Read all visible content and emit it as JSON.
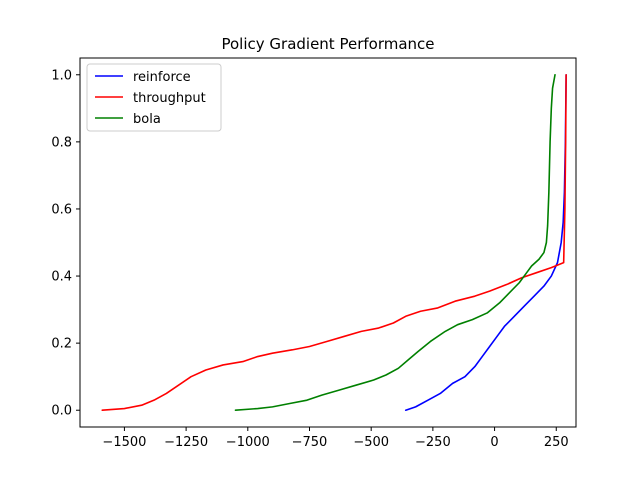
{
  "chart_data": {
    "type": "line",
    "title": "Policy Gradient Performance",
    "xlabel": "",
    "ylabel": "",
    "xlim": [
      -1680,
      330
    ],
    "ylim": [
      -0.05,
      1.05
    ],
    "x_ticks": [
      -1500,
      -1250,
      -1000,
      -750,
      -500,
      -250,
      0,
      250
    ],
    "x_tick_labels": [
      "−1500",
      "−1250",
      "−1000",
      "−750",
      "−500",
      "−250",
      "0",
      "250"
    ],
    "y_ticks": [
      0.0,
      0.2,
      0.4,
      0.6,
      0.8,
      1.0
    ],
    "y_tick_labels": [
      "0.0",
      "0.2",
      "0.4",
      "0.6",
      "0.8",
      "1.0"
    ],
    "grid": false,
    "legend_position": "top-left",
    "series": [
      {
        "name": "reinforce",
        "color": "#0000ff",
        "points": [
          [
            -360,
            0.0
          ],
          [
            -320,
            0.01
          ],
          [
            -270,
            0.03
          ],
          [
            -220,
            0.05
          ],
          [
            -170,
            0.08
          ],
          [
            -120,
            0.1
          ],
          [
            -80,
            0.13
          ],
          [
            -50,
            0.16
          ],
          [
            -20,
            0.19
          ],
          [
            10,
            0.22
          ],
          [
            40,
            0.25
          ],
          [
            80,
            0.28
          ],
          [
            120,
            0.31
          ],
          [
            160,
            0.34
          ],
          [
            200,
            0.37
          ],
          [
            230,
            0.4
          ],
          [
            255,
            0.44
          ],
          [
            270,
            0.5
          ],
          [
            278,
            0.56
          ],
          [
            283,
            0.65
          ],
          [
            287,
            0.8
          ],
          [
            290,
            1.0
          ]
        ]
      },
      {
        "name": "throughput",
        "color": "#ff0000",
        "points": [
          [
            -1590,
            0.0
          ],
          [
            -1500,
            0.005
          ],
          [
            -1430,
            0.015
          ],
          [
            -1380,
            0.03
          ],
          [
            -1330,
            0.05
          ],
          [
            -1280,
            0.075
          ],
          [
            -1230,
            0.1
          ],
          [
            -1170,
            0.12
          ],
          [
            -1100,
            0.135
          ],
          [
            -1020,
            0.145
          ],
          [
            -960,
            0.16
          ],
          [
            -900,
            0.17
          ],
          [
            -820,
            0.18
          ],
          [
            -750,
            0.19
          ],
          [
            -680,
            0.205
          ],
          [
            -610,
            0.22
          ],
          [
            -540,
            0.235
          ],
          [
            -470,
            0.245
          ],
          [
            -410,
            0.26
          ],
          [
            -360,
            0.28
          ],
          [
            -300,
            0.295
          ],
          [
            -230,
            0.305
          ],
          [
            -160,
            0.325
          ],
          [
            -80,
            0.34
          ],
          [
            -20,
            0.355
          ],
          [
            50,
            0.375
          ],
          [
            110,
            0.395
          ],
          [
            170,
            0.41
          ],
          [
            230,
            0.425
          ],
          [
            280,
            0.44
          ],
          [
            285,
            0.6
          ],
          [
            288,
            0.8
          ],
          [
            290,
            1.0
          ]
        ]
      },
      {
        "name": "bola",
        "color": "#008000",
        "points": [
          [
            -1050,
            0.0
          ],
          [
            -960,
            0.005
          ],
          [
            -900,
            0.01
          ],
          [
            -830,
            0.02
          ],
          [
            -760,
            0.03
          ],
          [
            -700,
            0.045
          ],
          [
            -630,
            0.06
          ],
          [
            -560,
            0.075
          ],
          [
            -490,
            0.09
          ],
          [
            -440,
            0.105
          ],
          [
            -390,
            0.125
          ],
          [
            -350,
            0.15
          ],
          [
            -310,
            0.175
          ],
          [
            -260,
            0.205
          ],
          [
            -200,
            0.235
          ],
          [
            -150,
            0.255
          ],
          [
            -90,
            0.27
          ],
          [
            -30,
            0.29
          ],
          [
            20,
            0.32
          ],
          [
            60,
            0.35
          ],
          [
            100,
            0.38
          ],
          [
            130,
            0.41
          ],
          [
            150,
            0.43
          ],
          [
            180,
            0.45
          ],
          [
            200,
            0.47
          ],
          [
            210,
            0.5
          ],
          [
            215,
            0.55
          ],
          [
            220,
            0.65
          ],
          [
            225,
            0.8
          ],
          [
            230,
            0.9
          ],
          [
            235,
            0.96
          ],
          [
            245,
            1.0
          ]
        ]
      }
    ]
  }
}
